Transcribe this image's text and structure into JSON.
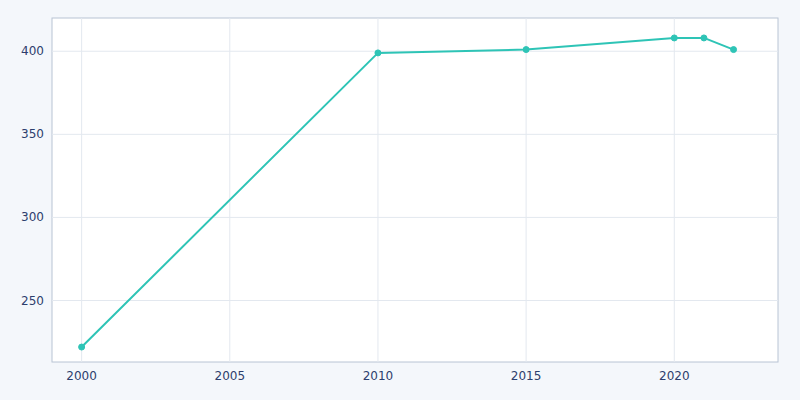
{
  "chart_data": {
    "type": "line",
    "x": [
      2000,
      2010,
      2015,
      2020,
      2021,
      2022
    ],
    "values": [
      222,
      399,
      401,
      408,
      408,
      401
    ],
    "color": "#2ec4b6",
    "marker": "o",
    "xlim": [
      1999,
      2023.5
    ],
    "ylim": [
      213,
      420
    ],
    "xticks": [
      2000,
      2005,
      2010,
      2015,
      2020
    ],
    "yticks": [
      250,
      300,
      350,
      400
    ],
    "grid": true
  }
}
